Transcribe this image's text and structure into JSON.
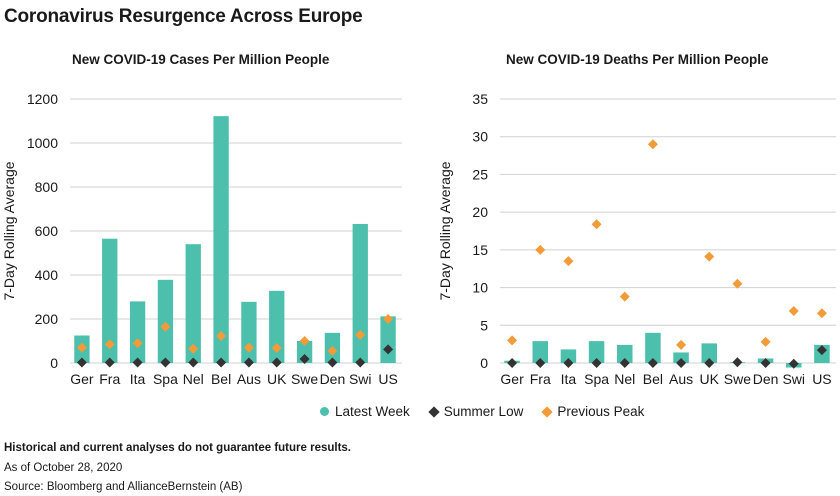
{
  "title": "Coronavirus Resurgence Across Europe",
  "colors": {
    "latest": "#4dbfad",
    "summer": "#333333",
    "peak": "#f29b38",
    "grid": "#d0d0d0"
  },
  "legend": {
    "latest": "Latest Week",
    "summer": "Summer Low",
    "peak": "Previous Peak"
  },
  "footer": {
    "disclaimer": "Historical and current analyses do not guarantee future results.",
    "date": "As of October 28, 2020",
    "source": "Source: Bloomberg and AllianceBernstein (AB)"
  },
  "chart_data": [
    {
      "type": "bar",
      "title": "New COVID-19 Cases Per Million People",
      "ylabel": "7-Day Rolling Average",
      "ylim": [
        0,
        1200
      ],
      "yticks": [
        0,
        200,
        400,
        600,
        800,
        1000,
        1200
      ],
      "ytick_labels": [
        "0",
        "200",
        "400",
        "600",
        "800",
        "1000",
        "1200"
      ],
      "categories": [
        "Ger",
        "Fra",
        "Ita",
        "Spa",
        "Nel",
        "Bel",
        "Aus",
        "UK",
        "Swe",
        "Den",
        "Swi",
        "US"
      ],
      "series": [
        {
          "name": "Latest Week",
          "kind": "bar",
          "values": [
            125,
            565,
            280,
            378,
            540,
            1122,
            278,
            328,
            100,
            137,
            632,
            212
          ]
        },
        {
          "name": "Summer Low",
          "kind": "diamond",
          "values": [
            2,
            2,
            2,
            2,
            2,
            2,
            2,
            2,
            18,
            2,
            2,
            62
          ]
        },
        {
          "name": "Previous Peak",
          "kind": "diamond",
          "values": [
            70,
            85,
            90,
            165,
            65,
            123,
            70,
            68,
            100,
            55,
            128,
            200
          ]
        }
      ]
    },
    {
      "type": "bar",
      "title": "New COVID-19 Deaths Per Million People",
      "ylabel": "7-Day Rolling Average",
      "ylim": [
        0,
        35
      ],
      "yticks": [
        0,
        5,
        10,
        15,
        20,
        25,
        30,
        35
      ],
      "ytick_labels": [
        "0",
        "5",
        "10",
        "15",
        "20",
        "25",
        "30",
        "35"
      ],
      "categories": [
        "Ger",
        "Fra",
        "Ita",
        "Spa",
        "Nel",
        "Bel",
        "Aus",
        "UK",
        "Swe",
        "Den",
        "Swi",
        "US"
      ],
      "series": [
        {
          "name": "Latest Week",
          "kind": "bar",
          "values": [
            0.3,
            2.9,
            1.8,
            2.9,
            2.4,
            4.0,
            1.4,
            2.6,
            0.1,
            0.6,
            -0.6,
            2.4
          ]
        },
        {
          "name": "Summer Low",
          "kind": "diamond",
          "values": [
            0,
            0,
            0,
            0,
            0,
            0,
            0,
            0,
            0.1,
            0,
            -0.1,
            1.7
          ]
        },
        {
          "name": "Previous Peak",
          "kind": "diamond",
          "values": [
            3.0,
            15.0,
            13.5,
            18.4,
            8.8,
            29.0,
            2.4,
            14.1,
            10.5,
            2.8,
            6.9,
            6.6
          ]
        }
      ]
    }
  ]
}
